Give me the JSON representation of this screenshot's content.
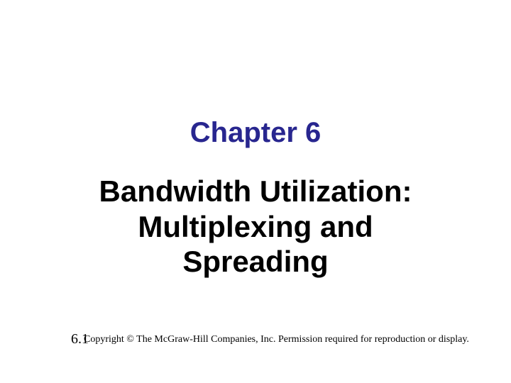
{
  "chapter": {
    "label": "Chapter 6",
    "title_line1": "Bandwidth Utilization:",
    "title_line2": "Multiplexing and",
    "title_line3": "Spreading"
  },
  "footer": {
    "page_number": "6.1",
    "copyright": "Copyright © The McGraw-Hill Companies, Inc. Permission required for reproduction or display."
  },
  "styling": {
    "background_color": "#ffffff",
    "chapter_label_color": "#28268f",
    "title_color": "#000000",
    "footer_color": "#000000",
    "label_fontsize": 40,
    "title_fontsize": 42,
    "page_number_fontsize": 20,
    "copyright_fontsize": 14,
    "label_font_family": "Arial",
    "footer_font_family": "Times New Roman"
  }
}
